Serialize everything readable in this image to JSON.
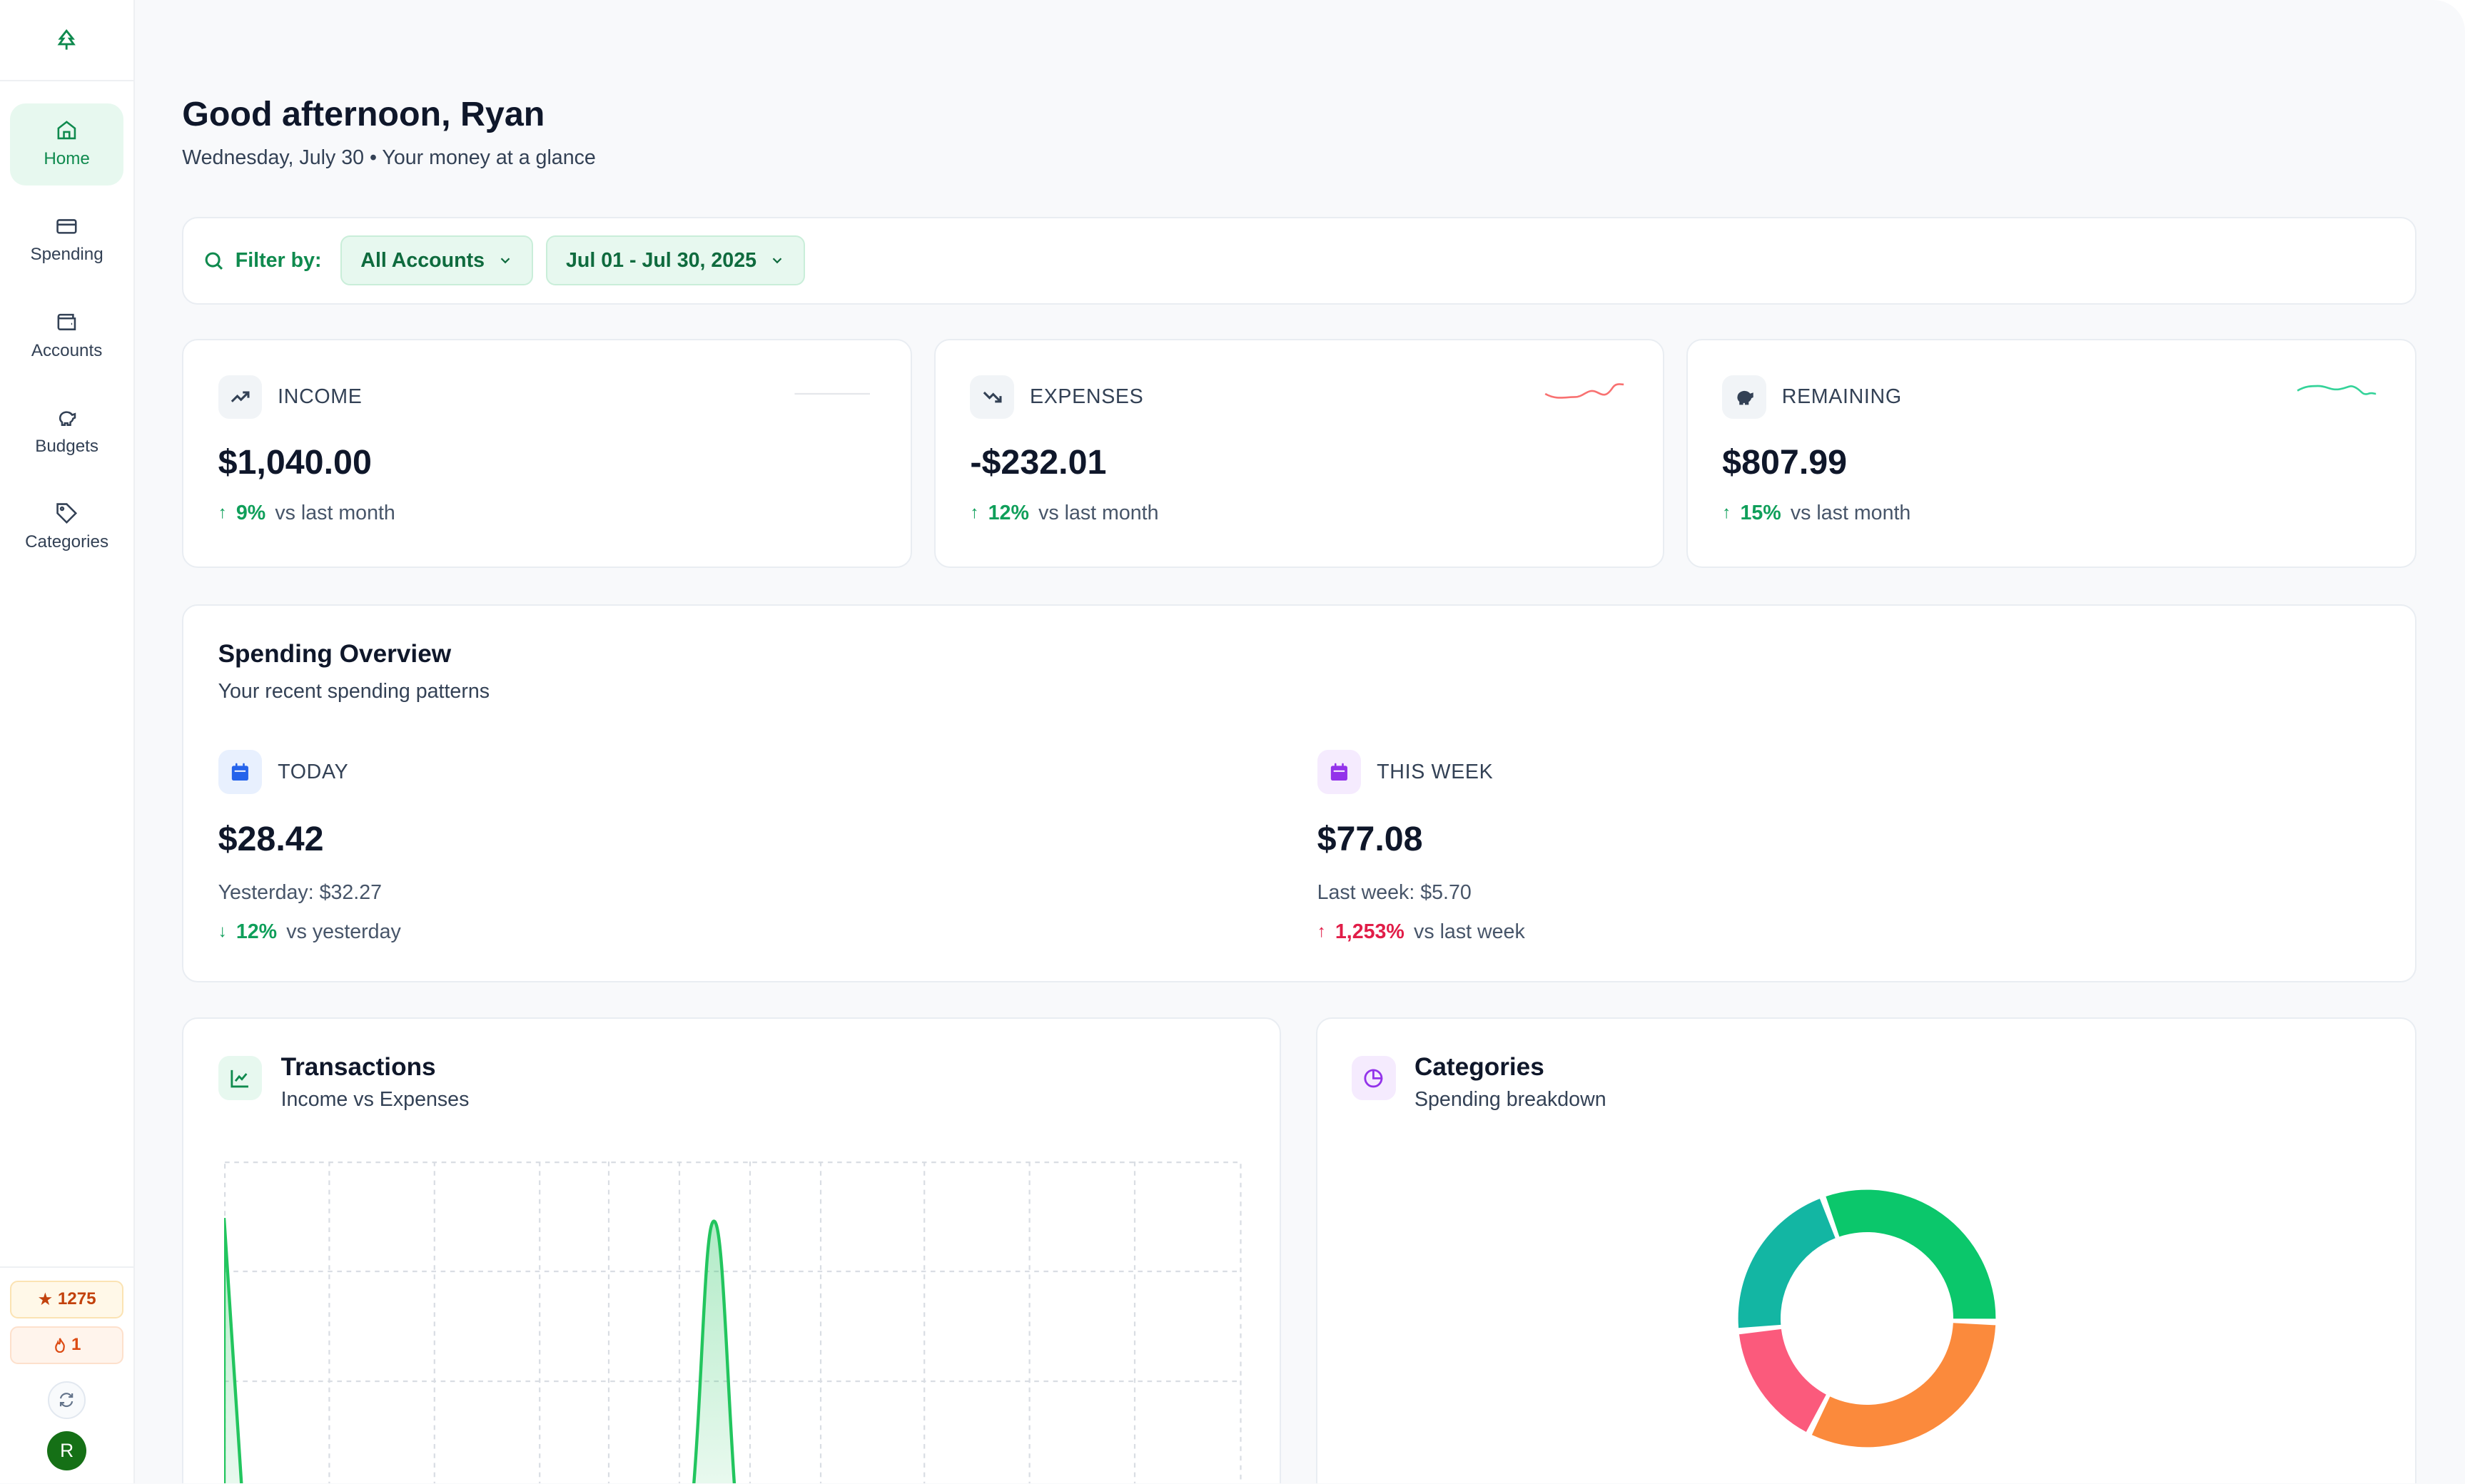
{
  "sidebar": {
    "items": [
      {
        "label": "Home",
        "icon": "home-icon",
        "active": true
      },
      {
        "label": "Spending",
        "icon": "credit-card-icon",
        "active": false
      },
      {
        "label": "Accounts",
        "icon": "wallet-icon",
        "active": false
      },
      {
        "label": "Budgets",
        "icon": "piggy-bank-icon",
        "active": false
      },
      {
        "label": "Categories",
        "icon": "tag-icon",
        "active": false
      }
    ],
    "points": "1275",
    "streak": "1",
    "avatar_initial": "R"
  },
  "header": {
    "greeting": "Good afternoon, Ryan",
    "subline": "Wednesday, July 30 • Your money at a glance"
  },
  "filter": {
    "label": "Filter by:",
    "account": "All Accounts",
    "date_range": "Jul 01 - Jul 30, 2025"
  },
  "stats": [
    {
      "title": "INCOME",
      "value": "$1,040.00",
      "change": "9%",
      "direction": "up",
      "tone": "green",
      "caption": "vs last month"
    },
    {
      "title": "EXPENSES",
      "value": "-$232.01",
      "change": "12%",
      "direction": "up",
      "tone": "green",
      "caption": "vs last month"
    },
    {
      "title": "REMAINING",
      "value": "$807.99",
      "change": "15%",
      "direction": "up",
      "tone": "green",
      "caption": "vs last month"
    }
  ],
  "overview": {
    "title": "Spending Overview",
    "subtitle": "Your recent spending patterns",
    "today": {
      "label": "TODAY",
      "value": "$28.42",
      "previous": "Yesterday: $32.27",
      "change": "12%",
      "direction": "down",
      "caption": "vs yesterday"
    },
    "week": {
      "label": "THIS WEEK",
      "value": "$77.08",
      "previous": "Last week: $5.70",
      "change": "1,253%",
      "direction": "up",
      "caption": "vs last week"
    }
  },
  "transactions": {
    "title": "Transactions",
    "subtitle": "Income vs Expenses"
  },
  "categories": {
    "title": "Categories",
    "subtitle": "Spending breakdown",
    "slices": [
      {
        "color": "#0bc76b",
        "value": 31
      },
      {
        "color": "#fb8a3c",
        "value": 32
      },
      {
        "color": "#fb5a7c",
        "value": 16
      },
      {
        "color": "#13b6a3",
        "value": 21
      }
    ]
  },
  "colors": {
    "accent": "#0f8a4e",
    "accent_bg": "#e7f8ef",
    "negative": "#e11d48"
  }
}
